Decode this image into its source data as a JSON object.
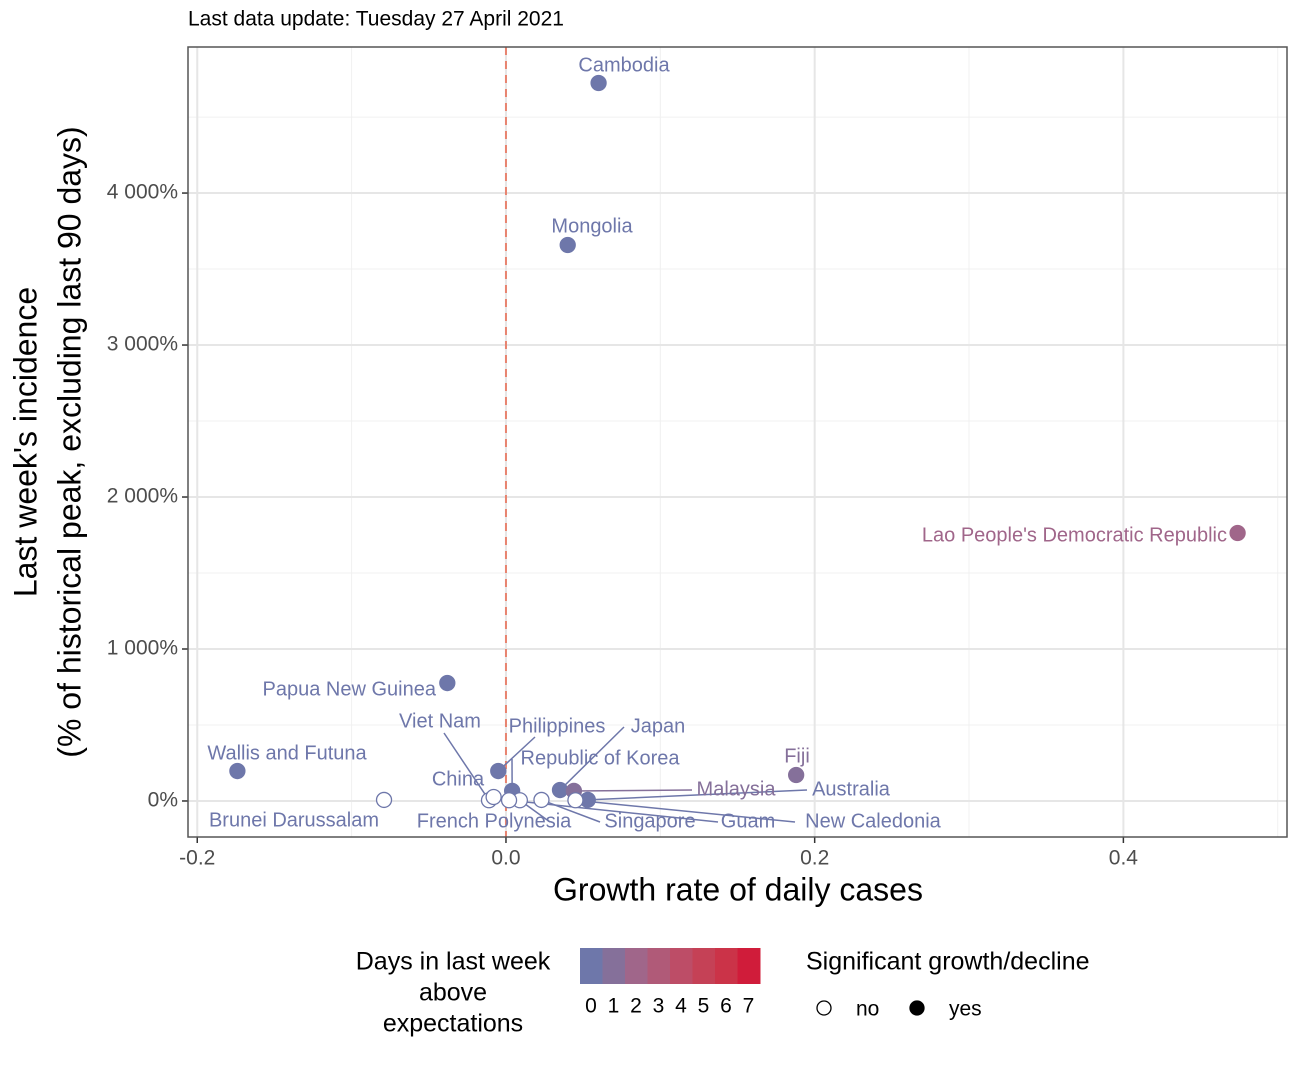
{
  "chart_data": {
    "type": "scatter",
    "subtitle": "Last data update: Tuesday 27 April 2021",
    "x_label": "Growth rate of daily cases",
    "y_label": [
      "Last week's incidence",
      "(% of historical peak, excluding last 90 days)"
    ],
    "xlim": [
      -0.206,
      0.506
    ],
    "ylim": [
      -237,
      4961
    ],
    "xticks": [
      -0.2,
      {
        "value": 0,
        "label": "0.0"
      },
      0.2,
      0.4
    ],
    "yticks": [
      {
        "value": 0,
        "label": "0%"
      },
      {
        "value": 1000,
        "label": "1 000%"
      },
      {
        "value": 2000,
        "label": "2 000%"
      },
      {
        "value": 3000,
        "label": "3 000%"
      },
      {
        "value": 4000,
        "label": "4 000%"
      }
    ],
    "grid": true,
    "reference_line": {
      "x": 0,
      "color": "#e8836f"
    },
    "labels": [
      "Cambodia",
      "Mongolia",
      "Lao People's Democratic Republic",
      "Papua New Guinea",
      "Wallis and Futuna",
      "Fiji",
      "Brunei Darussalam",
      "Viet Nam",
      "China",
      "Philippines",
      "Republic of Korea",
      "Japan",
      "Malaysia",
      "Australia",
      "French Polynesia",
      "Singapore",
      "Guam",
      "New Caledonia"
    ],
    "x": [
      0.06,
      0.04,
      0.474,
      -0.038,
      -0.174,
      0.188,
      -0.079,
      -0.011,
      -0.008,
      -0.005,
      0.004,
      0.035,
      0.044,
      0.053,
      0.009,
      0.023,
      0.002,
      0.045
    ],
    "y": [
      4724,
      3658,
      1763,
      776,
      197,
      171,
      7,
      5,
      26,
      197,
      66,
      72,
      66,
      7,
      5,
      7,
      5,
      5
    ],
    "days": [
      0,
      0,
      2,
      0,
      0,
      1,
      0,
      0,
      0,
      0,
      0,
      0,
      1,
      0,
      0,
      0,
      0,
      0
    ],
    "significant": [
      1,
      1,
      1,
      1,
      1,
      1,
      0,
      0,
      0,
      1,
      1,
      1,
      1,
      1,
      0,
      0,
      0,
      0
    ],
    "color_legend": {
      "title": [
        "Days in last week",
        "above",
        "expectations"
      ],
      "ticks": [
        0,
        1,
        2,
        3,
        4,
        5,
        6,
        7
      ],
      "colors": [
        "#6e77aa",
        "#85709a",
        "#a0668a",
        "#b05a78",
        "#bd4d67",
        "#c54156",
        "#cb3348",
        "#d01c3a"
      ]
    },
    "shape_legend": {
      "title": "Significant growth/decline",
      "labels": [
        "no",
        "yes"
      ]
    }
  }
}
